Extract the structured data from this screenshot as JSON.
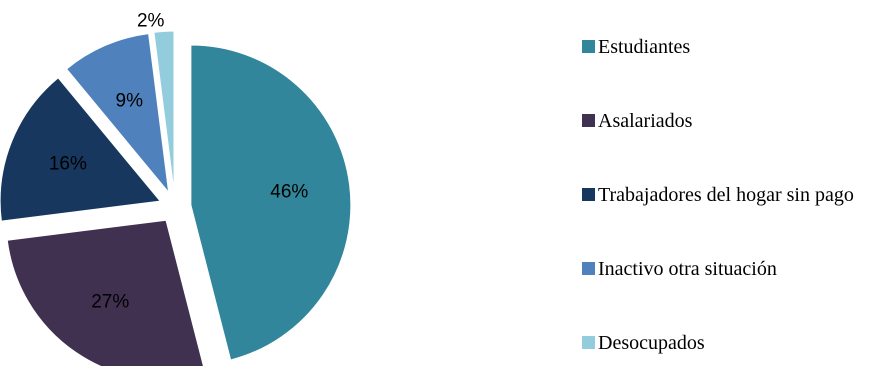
{
  "chart_data": {
    "type": "pie",
    "categories": [
      "Estudiantes",
      "Asalariados",
      "Trabajadores del hogar sin pago",
      "Inactivo otra situación",
      "Desocupados"
    ],
    "values": [
      46,
      27,
      16,
      9,
      2
    ],
    "labels": [
      "46%",
      "27%",
      "16%",
      "9%",
      "2%"
    ],
    "colors": [
      "#31869B",
      "#403151",
      "#17375E",
      "#4F81BD",
      "#93CDDD"
    ],
    "exploded": true,
    "legend_position": "right"
  }
}
